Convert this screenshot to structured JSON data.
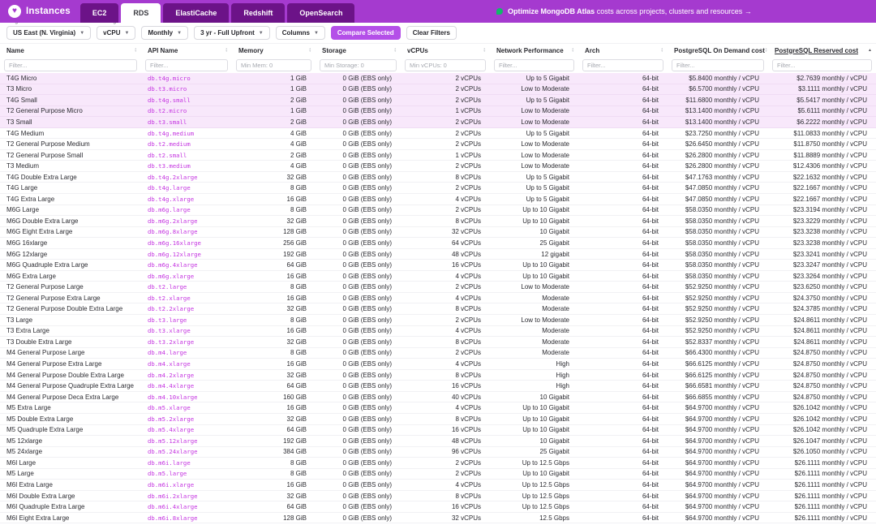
{
  "colors": {
    "topbar": "#A53ACF",
    "tab_inactive": "#6C1388",
    "primary_button": "#B44FE8",
    "api_link": "#C433E0",
    "selected_row_bg": "#F8E8FB",
    "banner_green": "#12B76A"
  },
  "brand": {
    "name": "Instances"
  },
  "tabs": [
    {
      "label": "EC2",
      "active": false
    },
    {
      "label": "RDS",
      "active": true
    },
    {
      "label": "ElastiCache",
      "active": false
    },
    {
      "label": "Redshift",
      "active": false
    },
    {
      "label": "OpenSearch",
      "active": false
    }
  ],
  "banner": {
    "highlight": "Optimize MongoDB Atlas",
    "text": "costs across projects, clusters and resources →"
  },
  "toolbar": {
    "controls": [
      {
        "label": "Region",
        "value": "US East (N. Virginia)"
      },
      {
        "label": "Pricing Unit",
        "value": "vCPU"
      },
      {
        "label": "Cost",
        "value": "Monthly"
      },
      {
        "label": "Reserved",
        "value": "3 yr - Full Upfront"
      },
      {
        "label": "",
        "value": "Columns"
      }
    ],
    "compare_button": "Compare Selected",
    "clear_button": "Clear Filters"
  },
  "table": {
    "columns": [
      {
        "key": "name",
        "label": "Name",
        "filter_placeholder": "Filter...",
        "align": "left",
        "sort": "both"
      },
      {
        "key": "api-name",
        "label": "API Name",
        "filter_placeholder": "Filter...",
        "align": "left",
        "sort": "both"
      },
      {
        "key": "memory",
        "label": "Memory",
        "filter_placeholder": "Min Mem: 0",
        "align": "right",
        "sort": "both"
      },
      {
        "key": "storage",
        "label": "Storage",
        "filter_placeholder": "Min Storage: 0",
        "align": "right",
        "sort": "both"
      },
      {
        "key": "vcpus",
        "label": "vCPUs",
        "filter_placeholder": "Min vCPUs: 0",
        "align": "right",
        "sort": "both"
      },
      {
        "key": "network",
        "label": "Network Performance",
        "filter_placeholder": "Filter...",
        "align": "right",
        "sort": "both"
      },
      {
        "key": "arch",
        "label": "Arch",
        "filter_placeholder": "Filter...",
        "align": "right",
        "sort": "both"
      },
      {
        "key": "on-demand-cost",
        "label": "PostgreSQL On Demand cost",
        "filter_placeholder": "Filter...",
        "align": "right",
        "sort": "both"
      },
      {
        "key": "reserved-cost",
        "label": "PostgreSQL Reserved cost",
        "filter_placeholder": "Filter...",
        "align": "right",
        "sort": "asc"
      }
    ],
    "selected_row_indices": [
      0,
      1,
      2,
      3,
      4
    ],
    "rows": [
      [
        "T4G Micro",
        "db.t4g.micro",
        "1 GiB",
        "0 GiB (EBS only)",
        "2 vCPUs",
        "Up to 5 Gigabit",
        "64-bit",
        "$5.8400 monthly / vCPU",
        "$2.7639 monthly / vCPU"
      ],
      [
        "T3 Micro",
        "db.t3.micro",
        "1 GiB",
        "0 GiB (EBS only)",
        "2 vCPUs",
        "Low to Moderate",
        "64-bit",
        "$6.5700 monthly / vCPU",
        "$3.1111 monthly / vCPU"
      ],
      [
        "T4G Small",
        "db.t4g.small",
        "2 GiB",
        "0 GiB (EBS only)",
        "2 vCPUs",
        "Up to 5 Gigabit",
        "64-bit",
        "$11.6800 monthly / vCPU",
        "$5.5417 monthly / vCPU"
      ],
      [
        "T2 General Purpose Micro",
        "db.t2.micro",
        "1 GiB",
        "0 GiB (EBS only)",
        "1 vCPUs",
        "Low to Moderate",
        "64-bit",
        "$13.1400 monthly / vCPU",
        "$5.6111 monthly / vCPU"
      ],
      [
        "T3 Small",
        "db.t3.small",
        "2 GiB",
        "0 GiB (EBS only)",
        "2 vCPUs",
        "Low to Moderate",
        "64-bit",
        "$13.1400 monthly / vCPU",
        "$6.2222 monthly / vCPU"
      ],
      [
        "T4G Medium",
        "db.t4g.medium",
        "4 GiB",
        "0 GiB (EBS only)",
        "2 vCPUs",
        "Up to 5 Gigabit",
        "64-bit",
        "$23.7250 monthly / vCPU",
        "$11.0833 monthly / vCPU"
      ],
      [
        "T2 General Purpose Medium",
        "db.t2.medium",
        "4 GiB",
        "0 GiB (EBS only)",
        "2 vCPUs",
        "Low to Moderate",
        "64-bit",
        "$26.6450 monthly / vCPU",
        "$11.8750 monthly / vCPU"
      ],
      [
        "T2 General Purpose Small",
        "db.t2.small",
        "2 GiB",
        "0 GiB (EBS only)",
        "1 vCPUs",
        "Low to Moderate",
        "64-bit",
        "$26.2800 monthly / vCPU",
        "$11.8889 monthly / vCPU"
      ],
      [
        "T3 Medium",
        "db.t3.medium",
        "4 GiB",
        "0 GiB (EBS only)",
        "2 vCPUs",
        "Low to Moderate",
        "64-bit",
        "$26.2800 monthly / vCPU",
        "$12.4306 monthly / vCPU"
      ],
      [
        "T4G Double Extra Large",
        "db.t4g.2xlarge",
        "32 GiB",
        "0 GiB (EBS only)",
        "8 vCPUs",
        "Up to 5 Gigabit",
        "64-bit",
        "$47.1763 monthly / vCPU",
        "$22.1632 monthly / vCPU"
      ],
      [
        "T4G Large",
        "db.t4g.large",
        "8 GiB",
        "0 GiB (EBS only)",
        "2 vCPUs",
        "Up to 5 Gigabit",
        "64-bit",
        "$47.0850 monthly / vCPU",
        "$22.1667 monthly / vCPU"
      ],
      [
        "T4G Extra Large",
        "db.t4g.xlarge",
        "16 GiB",
        "0 GiB (EBS only)",
        "4 vCPUs",
        "Up to 5 Gigabit",
        "64-bit",
        "$47.0850 monthly / vCPU",
        "$22.1667 monthly / vCPU"
      ],
      [
        "M6G Large",
        "db.m6g.large",
        "8 GiB",
        "0 GiB (EBS only)",
        "2 vCPUs",
        "Up to 10 Gigabit",
        "64-bit",
        "$58.0350 monthly / vCPU",
        "$23.3194 monthly / vCPU"
      ],
      [
        "M6G Double Extra Large",
        "db.m6g.2xlarge",
        "32 GiB",
        "0 GiB (EBS only)",
        "8 vCPUs",
        "Up to 10 Gigabit",
        "64-bit",
        "$58.0350 monthly / vCPU",
        "$23.3229 monthly / vCPU"
      ],
      [
        "M6G Eight Extra Large",
        "db.m6g.8xlarge",
        "128 GiB",
        "0 GiB (EBS only)",
        "32 vCPUs",
        "10 Gigabit",
        "64-bit",
        "$58.0350 monthly / vCPU",
        "$23.3238 monthly / vCPU"
      ],
      [
        "M6G 16xlarge",
        "db.m6g.16xlarge",
        "256 GiB",
        "0 GiB (EBS only)",
        "64 vCPUs",
        "25 Gigabit",
        "64-bit",
        "$58.0350 monthly / vCPU",
        "$23.3238 monthly / vCPU"
      ],
      [
        "M6G 12xlarge",
        "db.m6g.12xlarge",
        "192 GiB",
        "0 GiB (EBS only)",
        "48 vCPUs",
        "12 gigabit",
        "64-bit",
        "$58.0350 monthly / vCPU",
        "$23.3241 monthly / vCPU"
      ],
      [
        "M6G Quadruple Extra Large",
        "db.m6g.4xlarge",
        "64 GiB",
        "0 GiB (EBS only)",
        "16 vCPUs",
        "Up to 10 Gigabit",
        "64-bit",
        "$58.0350 monthly / vCPU",
        "$23.3247 monthly / vCPU"
      ],
      [
        "M6G Extra Large",
        "db.m6g.xlarge",
        "16 GiB",
        "0 GiB (EBS only)",
        "4 vCPUs",
        "Up to 10 Gigabit",
        "64-bit",
        "$58.0350 monthly / vCPU",
        "$23.3264 monthly / vCPU"
      ],
      [
        "T2 General Purpose Large",
        "db.t2.large",
        "8 GiB",
        "0 GiB (EBS only)",
        "2 vCPUs",
        "Low to Moderate",
        "64-bit",
        "$52.9250 monthly / vCPU",
        "$23.6250 monthly / vCPU"
      ],
      [
        "T2 General Purpose Extra Large",
        "db.t2.xlarge",
        "16 GiB",
        "0 GiB (EBS only)",
        "4 vCPUs",
        "Moderate",
        "64-bit",
        "$52.9250 monthly / vCPU",
        "$24.3750 monthly / vCPU"
      ],
      [
        "T2 General Purpose Double Extra Large",
        "db.t2.2xlarge",
        "32 GiB",
        "0 GiB (EBS only)",
        "8 vCPUs",
        "Moderate",
        "64-bit",
        "$52.9250 monthly / vCPU",
        "$24.3785 monthly / vCPU"
      ],
      [
        "T3 Large",
        "db.t3.large",
        "8 GiB",
        "0 GiB (EBS only)",
        "2 vCPUs",
        "Low to Moderate",
        "64-bit",
        "$52.9250 monthly / vCPU",
        "$24.8611 monthly / vCPU"
      ],
      [
        "T3 Extra Large",
        "db.t3.xlarge",
        "16 GiB",
        "0 GiB (EBS only)",
        "4 vCPUs",
        "Moderate",
        "64-bit",
        "$52.9250 monthly / vCPU",
        "$24.8611 monthly / vCPU"
      ],
      [
        "T3 Double Extra Large",
        "db.t3.2xlarge",
        "32 GiB",
        "0 GiB (EBS only)",
        "8 vCPUs",
        "Moderate",
        "64-bit",
        "$52.8337 monthly / vCPU",
        "$24.8611 monthly / vCPU"
      ],
      [
        "M4 General Purpose Large",
        "db.m4.large",
        "8 GiB",
        "0 GiB (EBS only)",
        "2 vCPUs",
        "Moderate",
        "64-bit",
        "$66.4300 monthly / vCPU",
        "$24.8750 monthly / vCPU"
      ],
      [
        "M4 General Purpose Extra Large",
        "db.m4.xlarge",
        "16 GiB",
        "0 GiB (EBS only)",
        "4 vCPUs",
        "High",
        "64-bit",
        "$66.6125 monthly / vCPU",
        "$24.8750 monthly / vCPU"
      ],
      [
        "M4 General Purpose Double Extra Large",
        "db.m4.2xlarge",
        "32 GiB",
        "0 GiB (EBS only)",
        "8 vCPUs",
        "High",
        "64-bit",
        "$66.6125 monthly / vCPU",
        "$24.8750 monthly / vCPU"
      ],
      [
        "M4 General Purpose Quadruple Extra Large",
        "db.m4.4xlarge",
        "64 GiB",
        "0 GiB (EBS only)",
        "16 vCPUs",
        "High",
        "64-bit",
        "$66.6581 monthly / vCPU",
        "$24.8750 monthly / vCPU"
      ],
      [
        "M4 General Purpose Deca Extra Large",
        "db.m4.10xlarge",
        "160 GiB",
        "0 GiB (EBS only)",
        "40 vCPUs",
        "10 Gigabit",
        "64-bit",
        "$66.6855 monthly / vCPU",
        "$24.8750 monthly / vCPU"
      ],
      [
        "M5 Extra Large",
        "db.m5.xlarge",
        "16 GiB",
        "0 GiB (EBS only)",
        "4 vCPUs",
        "Up to 10 Gigabit",
        "64-bit",
        "$64.9700 monthly / vCPU",
        "$26.1042 monthly / vCPU"
      ],
      [
        "M5 Double Extra Large",
        "db.m5.2xlarge",
        "32 GiB",
        "0 GiB (EBS only)",
        "8 vCPUs",
        "Up to 10 Gigabit",
        "64-bit",
        "$64.9700 monthly / vCPU",
        "$26.1042 monthly / vCPU"
      ],
      [
        "M5 Quadruple Extra Large",
        "db.m5.4xlarge",
        "64 GiB",
        "0 GiB (EBS only)",
        "16 vCPUs",
        "Up to 10 Gigabit",
        "64-bit",
        "$64.9700 monthly / vCPU",
        "$26.1042 monthly / vCPU"
      ],
      [
        "M5 12xlarge",
        "db.m5.12xlarge",
        "192 GiB",
        "0 GiB (EBS only)",
        "48 vCPUs",
        "10 Gigabit",
        "64-bit",
        "$64.9700 monthly / vCPU",
        "$26.1047 monthly / vCPU"
      ],
      [
        "M5 24xlarge",
        "db.m5.24xlarge",
        "384 GiB",
        "0 GiB (EBS only)",
        "96 vCPUs",
        "25 Gigabit",
        "64-bit",
        "$64.9700 monthly / vCPU",
        "$26.1050 monthly / vCPU"
      ],
      [
        "M6I Large",
        "db.m6i.large",
        "8 GiB",
        "0 GiB (EBS only)",
        "2 vCPUs",
        "Up to 12.5 Gbps",
        "64-bit",
        "$64.9700 monthly / vCPU",
        "$26.1111 monthly / vCPU"
      ],
      [
        "M5 Large",
        "db.m5.large",
        "8 GiB",
        "0 GiB (EBS only)",
        "2 vCPUs",
        "Up to 10 Gigabit",
        "64-bit",
        "$64.9700 monthly / vCPU",
        "$26.1111 monthly / vCPU"
      ],
      [
        "M6I Extra Large",
        "db.m6i.xlarge",
        "16 GiB",
        "0 GiB (EBS only)",
        "4 vCPUs",
        "Up to 12.5 Gbps",
        "64-bit",
        "$64.9700 monthly / vCPU",
        "$26.1111 monthly / vCPU"
      ],
      [
        "M6I Double Extra Large",
        "db.m6i.2xlarge",
        "32 GiB",
        "0 GiB (EBS only)",
        "8 vCPUs",
        "Up to 12.5 Gbps",
        "64-bit",
        "$64.9700 monthly / vCPU",
        "$26.1111 monthly / vCPU"
      ],
      [
        "M6I Quadruple Extra Large",
        "db.m6i.4xlarge",
        "64 GiB",
        "0 GiB (EBS only)",
        "16 vCPUs",
        "Up to 12.5 Gbps",
        "64-bit",
        "$64.9700 monthly / vCPU",
        "$26.1111 monthly / vCPU"
      ],
      [
        "M6I Eight Extra Large",
        "db.m6i.8xlarge",
        "128 GiB",
        "0 GiB (EBS only)",
        "32 vCPUs",
        "12.5 Gbps",
        "64-bit",
        "$64.9700 monthly / vCPU",
        "$26.1111 monthly / vCPU"
      ]
    ]
  }
}
